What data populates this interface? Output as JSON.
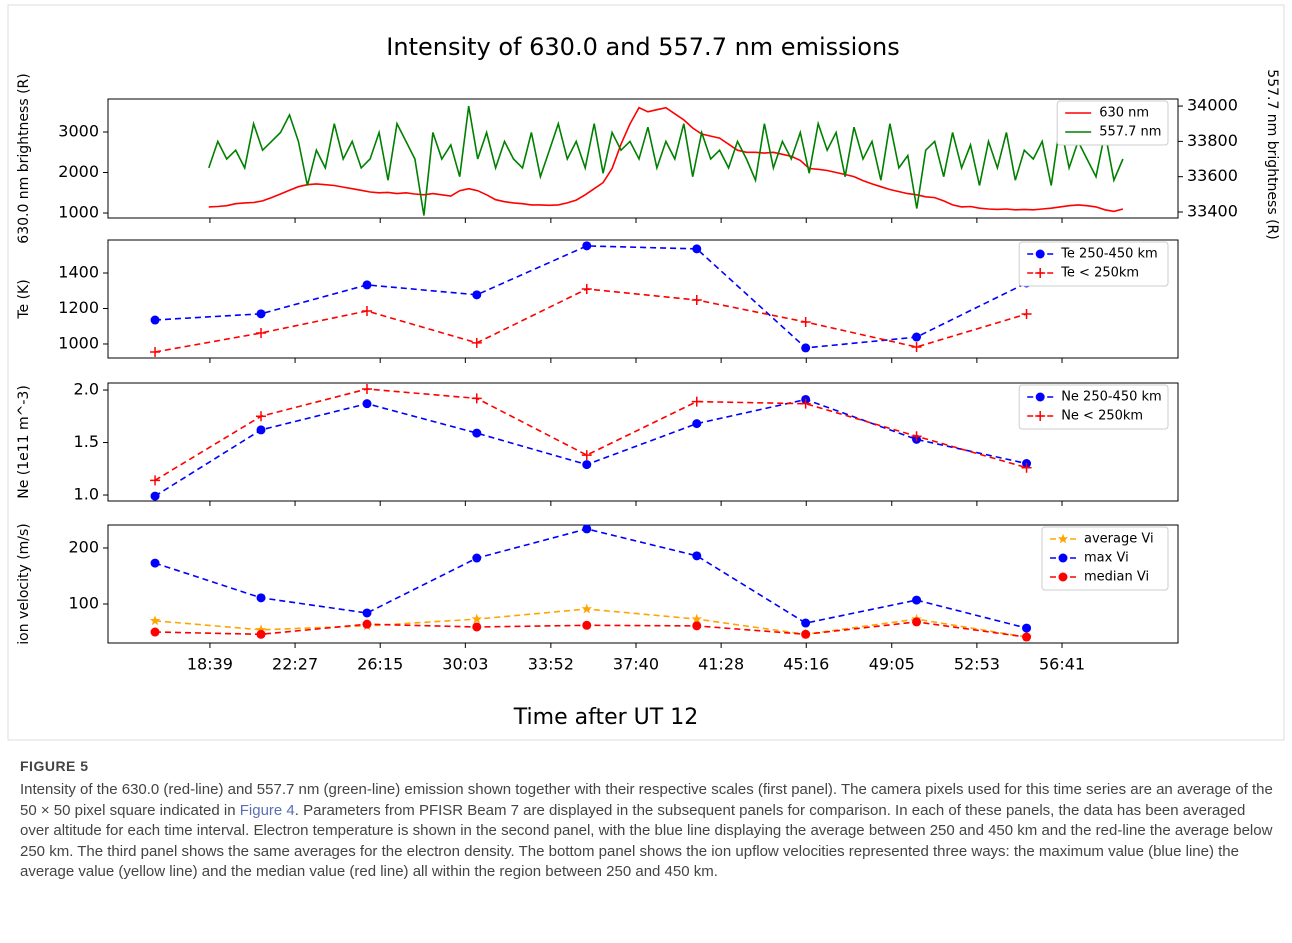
{
  "chart_data": [
    {
      "type": "line",
      "title": "Intensity of 630.0 and 557.7 nm emissions",
      "ylabel": "630.0 nm brightness (R)",
      "y2label": "557.7 nm brightness (R)",
      "xlim": [
        14.1,
        61.86
      ],
      "xticks": [
        18.65,
        22.45,
        26.25,
        30.05,
        33.867,
        37.667,
        41.467,
        45.267,
        49.083,
        52.883,
        56.683
      ],
      "ylim": [
        877,
        3815
      ],
      "yticks": [
        1000,
        2000,
        3000
      ],
      "y2lim": [
        33366,
        34040
      ],
      "y2ticks": [
        33400,
        33600,
        33800,
        34000
      ],
      "legend": "upper right",
      "linestyle": "solid",
      "x": [
        18.6,
        19.0,
        19.4,
        19.8,
        20.2,
        20.6,
        21.0,
        21.4,
        21.8,
        22.2,
        22.6,
        23.0,
        23.4,
        23.8,
        24.2,
        24.6,
        25.0,
        25.4,
        25.8,
        26.2,
        26.6,
        27.0,
        27.4,
        27.8,
        28.2,
        28.6,
        29.0,
        29.4,
        29.8,
        30.2,
        30.6,
        31.0,
        31.4,
        31.8,
        32.2,
        32.6,
        33.0,
        33.4,
        33.8,
        34.2,
        34.6,
        35.0,
        35.4,
        35.8,
        36.2,
        36.6,
        37.0,
        37.4,
        37.8,
        38.2,
        38.6,
        39.0,
        39.4,
        39.8,
        40.2,
        40.6,
        41.0,
        41.4,
        41.8,
        42.2,
        42.6,
        43.0,
        43.4,
        43.8,
        44.2,
        44.6,
        45.0,
        45.4,
        45.8,
        46.2,
        46.6,
        47.0,
        47.4,
        47.8,
        48.2,
        48.6,
        49.0,
        49.4,
        49.8,
        50.2,
        50.6,
        51.0,
        51.4,
        51.8,
        52.2,
        52.6,
        53.0,
        53.4,
        53.8,
        54.2,
        54.6,
        55.0,
        55.4,
        55.8,
        56.2,
        56.6,
        57.0,
        57.4,
        57.8,
        58.2,
        58.6,
        59.0,
        59.4
      ],
      "series": [
        {
          "name": "630 nm",
          "color": "#ff0000",
          "values": [
            1150,
            1160,
            1180,
            1230,
            1250,
            1260,
            1300,
            1380,
            1470,
            1560,
            1650,
            1700,
            1720,
            1700,
            1680,
            1640,
            1600,
            1560,
            1520,
            1500,
            1510,
            1480,
            1500,
            1470,
            1450,
            1480,
            1450,
            1420,
            1550,
            1600,
            1550,
            1450,
            1330,
            1280,
            1250,
            1230,
            1200,
            1200,
            1190,
            1200,
            1250,
            1320,
            1450,
            1600,
            1750,
            2100,
            2700,
            3200,
            3600,
            3500,
            3550,
            3600,
            3450,
            3300,
            3100,
            2950,
            2900,
            2850,
            2700,
            2550,
            2500,
            2500,
            2480,
            2500,
            2450,
            2400,
            2300,
            2100,
            2080,
            2050,
            2000,
            1950,
            1900,
            1800,
            1720,
            1650,
            1580,
            1530,
            1480,
            1450,
            1400,
            1380,
            1300,
            1200,
            1150,
            1160,
            1120,
            1100,
            1090,
            1100,
            1080,
            1090,
            1080,
            1100,
            1120,
            1150,
            1180,
            1200,
            1180,
            1150,
            1080,
            1040,
            1100
          ]
        },
        {
          "name": "557.7 nm",
          "color": "#008000",
          "axis": "y2",
          "values": [
            33650,
            33800,
            33700,
            33750,
            33650,
            33900,
            33750,
            33800,
            33850,
            33950,
            33800,
            33550,
            33750,
            33650,
            33900,
            33700,
            33800,
            33650,
            33700,
            33850,
            33580,
            33900,
            33800,
            33700,
            33380,
            33850,
            33700,
            33780,
            33600,
            34000,
            33700,
            33850,
            33650,
            33800,
            33700,
            33650,
            33850,
            33600,
            33750,
            33900,
            33700,
            33800,
            33650,
            33900,
            33620,
            33850,
            33750,
            33800,
            33700,
            33880,
            33650,
            33800,
            33700,
            33900,
            33600,
            33850,
            33700,
            33750,
            33650,
            33800,
            33700,
            33580,
            33900,
            33650,
            33800,
            33700,
            33850,
            33620,
            33900,
            33750,
            33850,
            33600,
            33880,
            33700,
            33800,
            33580,
            33900,
            33650,
            33720,
            33420,
            33750,
            33800,
            33600,
            33850,
            33650,
            33780,
            33550,
            33800,
            33650,
            33850,
            33580,
            33750,
            33700,
            33800,
            33550,
            33900,
            33650,
            33800,
            33700,
            33600,
            33850,
            33580,
            33700
          ]
        }
      ]
    },
    {
      "type": "line",
      "ylabel": "Te (K)",
      "xlim": [
        14.1,
        61.86
      ],
      "xticks": [
        18.65,
        22.45,
        26.25,
        30.05,
        33.867,
        37.667,
        41.467,
        45.267,
        49.083,
        52.883,
        56.683
      ],
      "ylim": [
        921,
        1586
      ],
      "yticks": [
        1000,
        1200,
        1400
      ],
      "legend": "upper right",
      "linestyle": "dashed",
      "x": [
        16.2,
        20.93,
        25.66,
        30.56,
        35.47,
        40.38,
        45.24,
        50.19,
        55.1
      ],
      "series": [
        {
          "name": "Te 250-450 km",
          "color": "#0000ff",
          "marker": "circle",
          "values": [
            1135,
            1170,
            1333,
            1277,
            1553,
            1536,
            978,
            1039,
            1344
          ]
        },
        {
          "name": "Te < 250km",
          "color": "#ff0000",
          "marker": "plus",
          "values": [
            955,
            1062,
            1186,
            1006,
            1310,
            1248,
            1124,
            983,
            1169
          ]
        }
      ]
    },
    {
      "type": "line",
      "ylabel": "Ne (1e11 m^-3)",
      "xlim": [
        14.1,
        61.86
      ],
      "xticks": [
        18.65,
        22.45,
        26.25,
        30.05,
        33.867,
        37.667,
        41.467,
        45.267,
        49.083,
        52.883,
        56.683
      ],
      "ylim": [
        0.943,
        2.067
      ],
      "yticks": [
        {
          "value": 1,
          "label": "1.0"
        },
        {
          "value": 1.5,
          "label": "1.5"
        },
        {
          "value": 2,
          "label": "2.0"
        }
      ],
      "legend": "upper right",
      "linestyle": "dashed",
      "x": [
        16.2,
        20.93,
        25.66,
        30.56,
        35.47,
        40.38,
        45.24,
        50.19,
        55.1
      ],
      "series": [
        {
          "name": "Ne 250-450 km",
          "color": "#0000ff",
          "marker": "circle",
          "values": [
            0.99,
            1.62,
            1.87,
            1.59,
            1.29,
            1.68,
            1.91,
            1.53,
            1.3
          ]
        },
        {
          "name": "Ne < 250km",
          "color": "#ff0000",
          "marker": "plus",
          "values": [
            1.14,
            1.75,
            2.01,
            1.92,
            1.38,
            1.89,
            1.87,
            1.56,
            1.26
          ]
        }
      ]
    },
    {
      "type": "line",
      "ylabel": "ion velocity (m/s)",
      "xlabel": "Time after UT 12",
      "xlim": [
        14.1,
        61.86
      ],
      "xticks": [
        {
          "value": 18.65,
          "label": "18:39"
        },
        {
          "value": 22.45,
          "label": "22:27"
        },
        {
          "value": 26.25,
          "label": "26:15"
        },
        {
          "value": 30.05,
          "label": "30:03"
        },
        {
          "value": 33.867,
          "label": "33:52"
        },
        {
          "value": 37.667,
          "label": "37:40"
        },
        {
          "value": 41.467,
          "label": "41:28"
        },
        {
          "value": 45.267,
          "label": "45:16"
        },
        {
          "value": 49.083,
          "label": "49:05"
        },
        {
          "value": 52.883,
          "label": "52:53"
        },
        {
          "value": 56.683,
          "label": "56:41"
        }
      ],
      "ylim": [
        30.4,
        241
      ],
      "yticks": [
        100,
        200
      ],
      "legend": "upper right",
      "linestyle": "dashed",
      "x": [
        16.2,
        20.93,
        25.66,
        30.56,
        35.47,
        40.38,
        45.24,
        50.19,
        55.1
      ],
      "series": [
        {
          "name": "average Vi",
          "color": "#ffa500",
          "marker": "star",
          "values": [
            70,
            54,
            61,
            73,
            91,
            73,
            46,
            73,
            41
          ]
        },
        {
          "name": "max Vi",
          "color": "#0000ff",
          "marker": "circle",
          "values": [
            173,
            111,
            84,
            182,
            234,
            186,
            66,
            107,
            57
          ]
        },
        {
          "name": "median Vi",
          "color": "#ff0000",
          "marker": "circle",
          "values": [
            50,
            46,
            64,
            59,
            62,
            61,
            46,
            68,
            41
          ]
        }
      ]
    }
  ],
  "figure": {
    "label": "FIGURE 5",
    "caption": [
      "Intensity of the 630.0 (red-line) and 557.7 nm (green-line) emission shown together with their respective scales (first panel). The camera pixels used for this time series are an average of the 50 × 50 pixel square indicated in ",
      "Figure 4",
      ". Parameters from PFISR Beam 7 are displayed in the subsequent panels for comparison. In each of these panels, the data has been averaged over altitude for each time interval. Electron temperature is shown in the second panel, with the blue line displaying the average between 250 and 450 km and the red-line the average below 250 km. The third panel shows the same averages for the electron density. The bottom panel shows the ion upflow velocities represented three ways: the maximum value (blue line) the average value (yellow line) and the median value (red line) all within the region between 250 and 450 km."
    ]
  }
}
